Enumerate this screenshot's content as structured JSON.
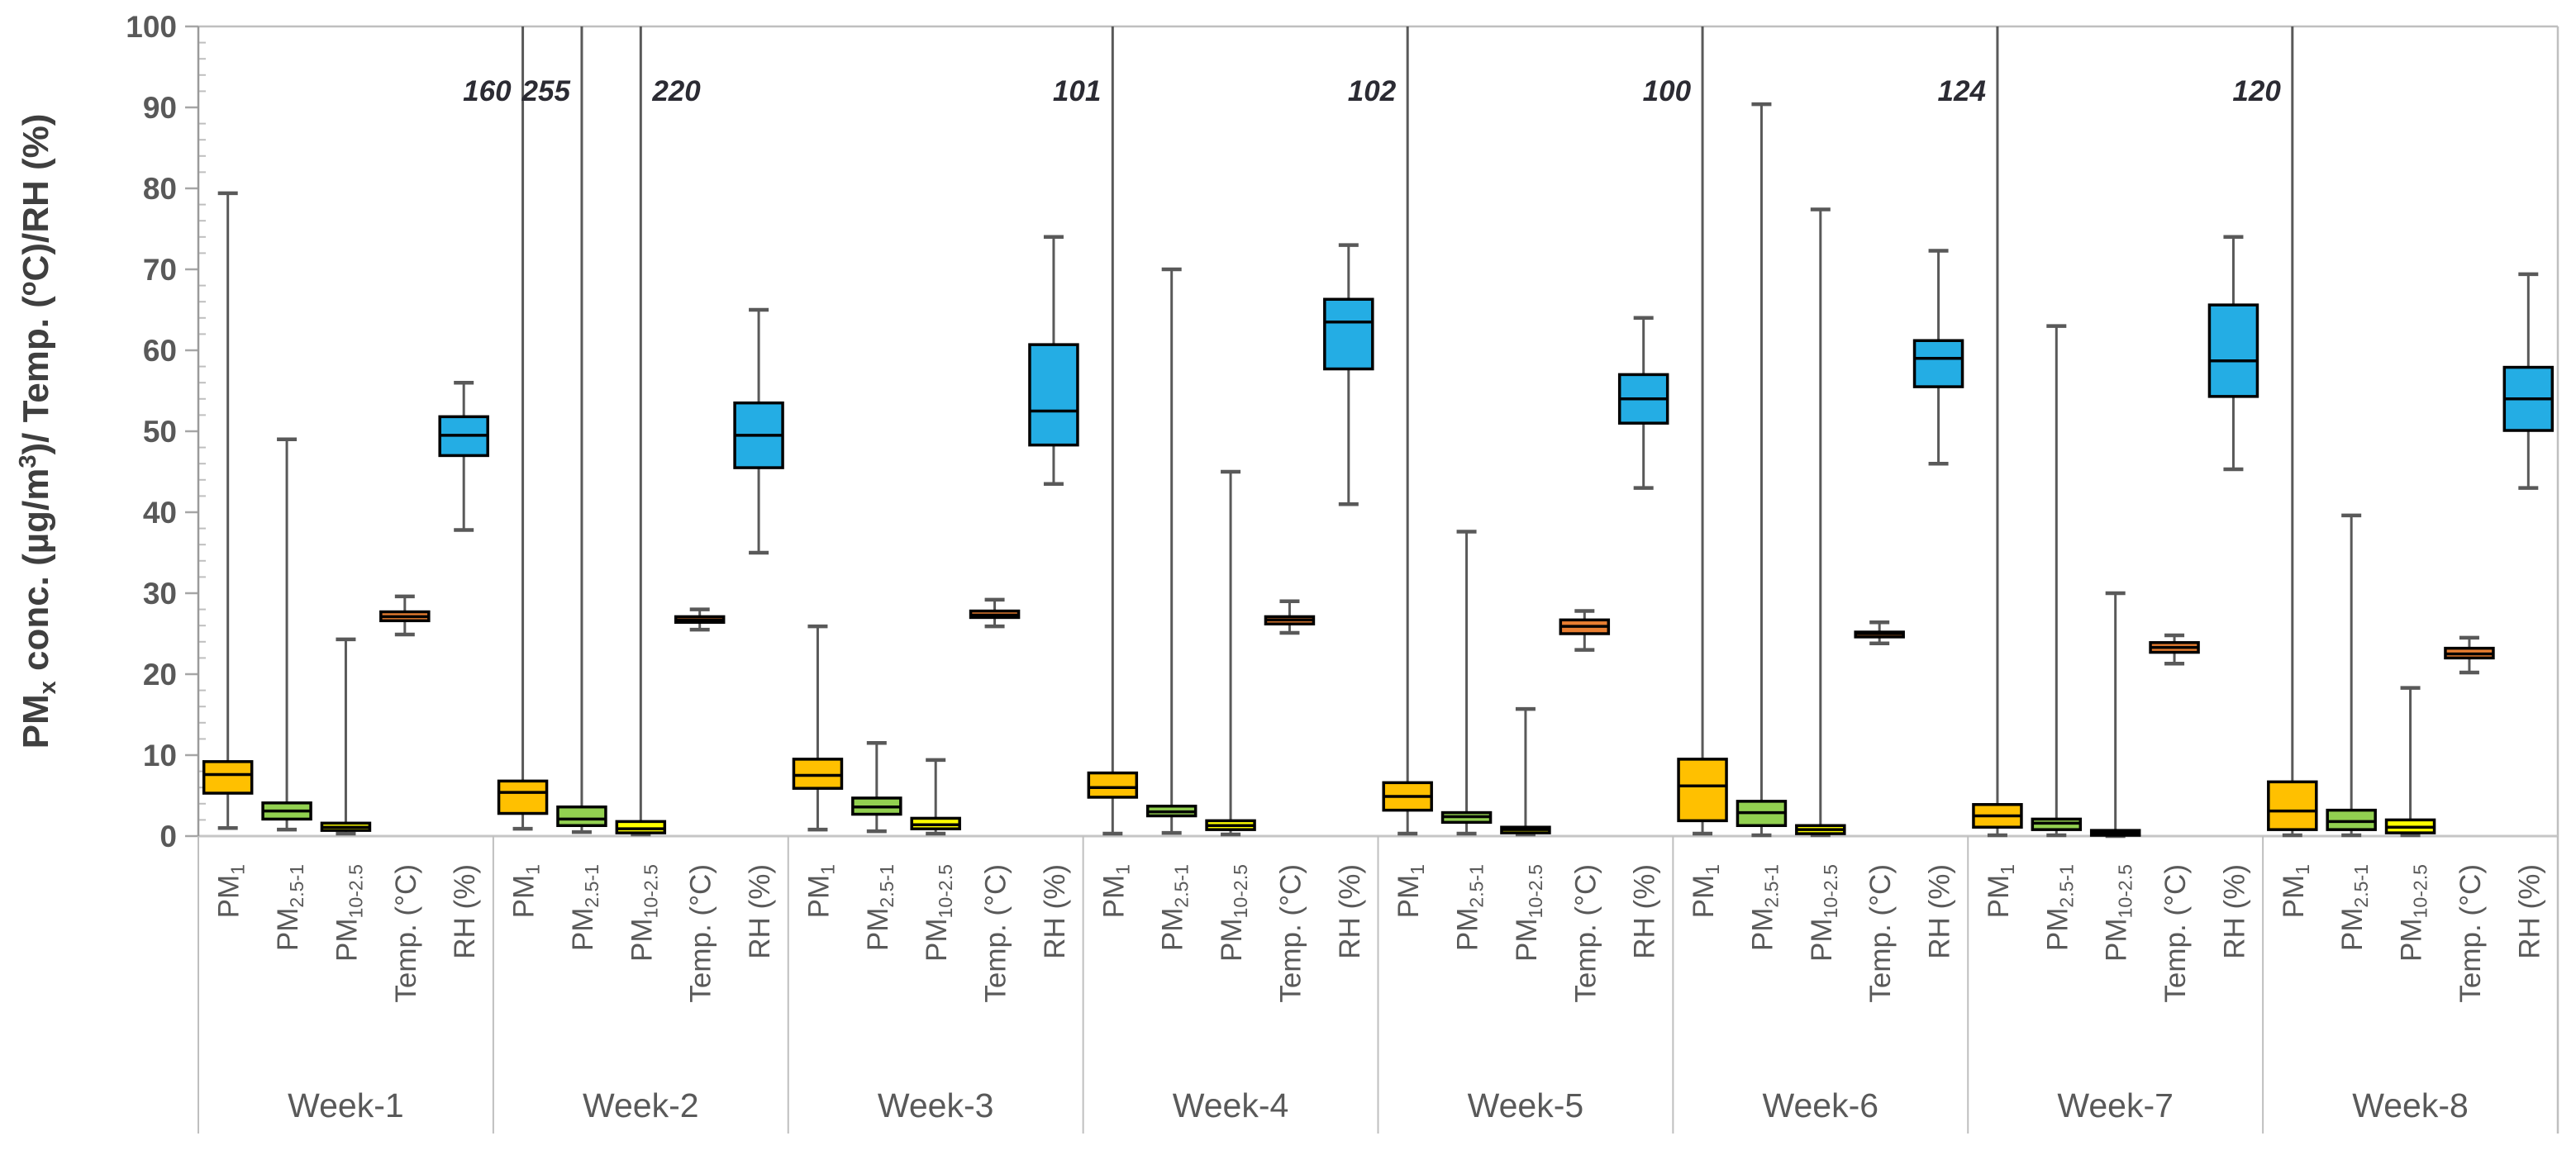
{
  "chart_data": {
    "type": "box",
    "title": "",
    "ylabel_segments": [
      {
        "t": "PM"
      },
      {
        "t": "x",
        "sub": true
      },
      {
        "t": " conc. (µg/m"
      },
      {
        "t": "3",
        "sup": true
      },
      {
        "t": ")/ Temp. ("
      },
      {
        "t": "o",
        "sup": true
      },
      {
        "t": "C)/RH (%)"
      }
    ],
    "y_axis": {
      "min": 0,
      "max": 100,
      "major_step": 10,
      "minor_step": 2,
      "tick_labels": [
        "0",
        "10",
        "20",
        "30",
        "40",
        "50",
        "60",
        "70",
        "80",
        "90",
        "100"
      ],
      "grid": false,
      "legend": "none"
    },
    "series_defs": [
      {
        "id": "pm1",
        "fill": "#FFC000",
        "label_segments": [
          {
            "t": "PM"
          },
          {
            "t": "1",
            "sub": true
          }
        ]
      },
      {
        "id": "pm2_5-1",
        "fill": "#92D050",
        "label_segments": [
          {
            "t": "PM"
          },
          {
            "t": "2.5-1",
            "sub": true
          }
        ]
      },
      {
        "id": "pm10-2_5",
        "fill": "#FFFF00",
        "label_segments": [
          {
            "t": "PM"
          },
          {
            "t": "10-2.5",
            "sub": true
          }
        ]
      },
      {
        "id": "temp",
        "fill": "#E87E31",
        "label_segments": [
          {
            "t": "Temp. (°C)"
          }
        ]
      },
      {
        "id": "rh",
        "fill": "#24ADE4",
        "label_segments": [
          {
            "t": "RH (%)"
          }
        ]
      }
    ],
    "style": {
      "whisker_color": "#595959",
      "box_border": "#000000",
      "median_color": "#000000",
      "axis_color": "#9A9A9A",
      "border_color": "#BFBFBF",
      "tick_label_color": "#595959",
      "category_label_color": "#595959",
      "week_label_color": "#595959",
      "annotation_color": "#2B2B33"
    },
    "weeks": [
      {
        "label": "Week-1",
        "boxes": [
          {
            "lo": 1.0,
            "q1": 5.3,
            "med": 7.6,
            "q3": 9.2,
            "hi": 79.4
          },
          {
            "lo": 0.8,
            "q1": 2.1,
            "med": 3.1,
            "q3": 4.1,
            "hi": 49.0
          },
          {
            "lo": 0.3,
            "q1": 0.7,
            "med": 1.1,
            "q3": 1.6,
            "hi": 24.3
          },
          {
            "lo": 24.9,
            "q1": 26.6,
            "med": 27.1,
            "q3": 27.7,
            "hi": 29.6
          },
          {
            "lo": 37.8,
            "q1": 47.0,
            "med": 49.5,
            "q3": 51.8,
            "hi": 56.0
          }
        ]
      },
      {
        "label": "Week-2",
        "boxes": [
          {
            "lo": 0.9,
            "q1": 2.8,
            "med": 5.4,
            "q3": 6.8,
            "hi": null,
            "max_label": "160",
            "label_side": "left"
          },
          {
            "lo": 0.5,
            "q1": 1.3,
            "med": 2.1,
            "q3": 3.6,
            "hi": null,
            "max_label": "255",
            "label_side": "left"
          },
          {
            "lo": 0.2,
            "q1": 0.4,
            "med": 0.9,
            "q3": 1.8,
            "hi": null,
            "max_label": "220",
            "label_side": "right"
          },
          {
            "lo": 25.5,
            "q1": 26.4,
            "med": 26.7,
            "q3": 27.1,
            "hi": 28.0
          },
          {
            "lo": 35.0,
            "q1": 45.5,
            "med": 49.5,
            "q3": 53.5,
            "hi": 65.0
          }
        ]
      },
      {
        "label": "Week-3",
        "boxes": [
          {
            "lo": 0.8,
            "q1": 5.9,
            "med": 7.5,
            "q3": 9.5,
            "hi": 25.9
          },
          {
            "lo": 0.6,
            "q1": 2.7,
            "med": 3.6,
            "q3": 4.7,
            "hi": 11.5
          },
          {
            "lo": 0.3,
            "q1": 0.9,
            "med": 1.4,
            "q3": 2.2,
            "hi": 9.4
          },
          {
            "lo": 25.9,
            "q1": 27.0,
            "med": 27.3,
            "q3": 27.8,
            "hi": 29.2
          },
          {
            "lo": 43.5,
            "q1": 48.3,
            "med": 52.5,
            "q3": 60.7,
            "hi": 74.0
          }
        ]
      },
      {
        "label": "Week-4",
        "boxes": [
          {
            "lo": 0.3,
            "q1": 4.8,
            "med": 6.0,
            "q3": 7.8,
            "hi": null,
            "max_label": "101",
            "label_side": "left"
          },
          {
            "lo": 0.4,
            "q1": 2.5,
            "med": 3.0,
            "q3": 3.7,
            "hi": 70.0
          },
          {
            "lo": 0.2,
            "q1": 0.8,
            "med": 1.3,
            "q3": 1.9,
            "hi": 45.0
          },
          {
            "lo": 25.1,
            "q1": 26.2,
            "med": 26.7,
            "q3": 27.1,
            "hi": 29.0
          },
          {
            "lo": 41.0,
            "q1": 57.7,
            "med": 63.5,
            "q3": 66.3,
            "hi": 73.0
          }
        ]
      },
      {
        "label": "Week-5",
        "boxes": [
          {
            "lo": 0.3,
            "q1": 3.2,
            "med": 4.9,
            "q3": 6.6,
            "hi": null,
            "max_label": "102",
            "label_side": "left"
          },
          {
            "lo": 0.3,
            "q1": 1.7,
            "med": 2.4,
            "q3": 2.9,
            "hi": 37.6
          },
          {
            "lo": 0.2,
            "q1": 0.4,
            "med": 0.8,
            "q3": 1.1,
            "hi": 15.7
          },
          {
            "lo": 23.0,
            "q1": 25.0,
            "med": 25.9,
            "q3": 26.7,
            "hi": 27.8
          },
          {
            "lo": 43.0,
            "q1": 51.0,
            "med": 54.0,
            "q3": 57.0,
            "hi": 64.0
          }
        ]
      },
      {
        "label": "Week-6",
        "boxes": [
          {
            "lo": 0.3,
            "q1": 1.9,
            "med": 6.2,
            "q3": 9.5,
            "hi": null,
            "max_label": "100",
            "label_side": "left"
          },
          {
            "lo": 0.1,
            "q1": 1.3,
            "med": 2.9,
            "q3": 4.3,
            "hi": 90.4
          },
          {
            "lo": 0.1,
            "q1": 0.3,
            "med": 0.8,
            "q3": 1.3,
            "hi": 77.4
          },
          {
            "lo": 23.8,
            "q1": 24.6,
            "med": 25.0,
            "q3": 25.2,
            "hi": 26.4
          },
          {
            "lo": 46.0,
            "q1": 55.5,
            "med": 59.0,
            "q3": 61.2,
            "hi": 72.3
          }
        ]
      },
      {
        "label": "Week-7",
        "boxes": [
          {
            "lo": 0.1,
            "q1": 1.1,
            "med": 2.5,
            "q3": 3.9,
            "hi": null,
            "max_label": "124",
            "label_side": "left"
          },
          {
            "lo": 0.1,
            "q1": 0.8,
            "med": 1.6,
            "q3": 2.1,
            "hi": 63.0
          },
          {
            "lo": 0.0,
            "q1": 0.1,
            "med": 0.4,
            "q3": 0.7,
            "hi": 30.0
          },
          {
            "lo": 21.3,
            "q1": 22.7,
            "med": 23.3,
            "q3": 23.9,
            "hi": 24.8
          },
          {
            "lo": 45.3,
            "q1": 54.3,
            "med": 58.7,
            "q3": 65.6,
            "hi": 74.0
          }
        ]
      },
      {
        "label": "Week-8",
        "boxes": [
          {
            "lo": 0.1,
            "q1": 0.8,
            "med": 3.1,
            "q3": 6.7,
            "hi": null,
            "max_label": "120",
            "label_side": "left"
          },
          {
            "lo": 0.1,
            "q1": 0.8,
            "med": 1.8,
            "q3": 3.2,
            "hi": 39.6
          },
          {
            "lo": 0.1,
            "q1": 0.4,
            "med": 1.1,
            "q3": 2.0,
            "hi": 18.3
          },
          {
            "lo": 20.2,
            "q1": 22.0,
            "med": 22.5,
            "q3": 23.2,
            "hi": 24.5
          },
          {
            "lo": 43.0,
            "q1": 50.1,
            "med": 54.0,
            "q3": 57.9,
            "hi": 69.4
          }
        ]
      }
    ]
  }
}
